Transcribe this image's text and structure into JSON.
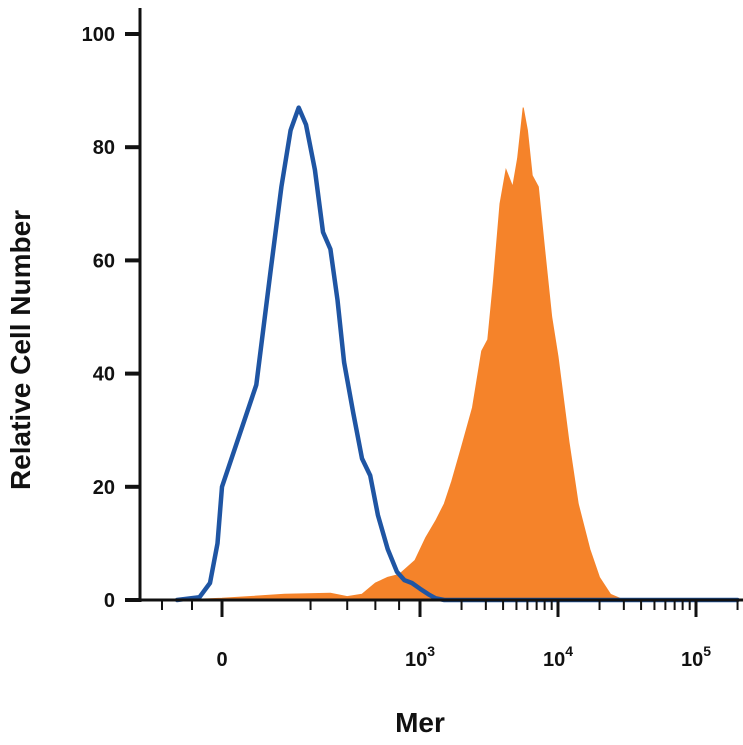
{
  "chart_data": {
    "type": "area",
    "xlabel": "Mer",
    "ylabel": "Relative Cell Number",
    "x_scale": "biexponential",
    "x_ticks": [
      {
        "value": 0,
        "base": "0",
        "exp": ""
      },
      {
        "value": 1000,
        "base": "10",
        "exp": "3"
      },
      {
        "value": 10000,
        "base": "10",
        "exp": "4"
      },
      {
        "value": 100000,
        "base": "10",
        "exp": "5"
      }
    ],
    "ylim": [
      0,
      100
    ],
    "y_ticks": [
      {
        "value": 0,
        "label": "0"
      },
      {
        "value": 20,
        "label": "20"
      },
      {
        "value": 40,
        "label": "40"
      },
      {
        "value": 60,
        "label": "60"
      },
      {
        "value": 80,
        "label": "80"
      },
      {
        "value": 100,
        "label": "100"
      }
    ],
    "grid": false,
    "legend": "none",
    "series": [
      {
        "style": "filled",
        "color": "#f5832a",
        "points": [
          [
            -300,
            0
          ],
          [
            0,
            0.3
          ],
          [
            100,
            1
          ],
          [
            300,
            1.2
          ],
          [
            400,
            0.6
          ],
          [
            500,
            1
          ],
          [
            600,
            3
          ],
          [
            700,
            4
          ],
          [
            800,
            4.5
          ],
          [
            950,
            7
          ],
          [
            1100,
            11
          ],
          [
            1300,
            14
          ],
          [
            1500,
            17
          ],
          [
            1700,
            21
          ],
          [
            2000,
            27
          ],
          [
            2400,
            34
          ],
          [
            2800,
            44
          ],
          [
            3100,
            46
          ],
          [
            3400,
            56
          ],
          [
            3800,
            70
          ],
          [
            4200,
            76
          ],
          [
            4700,
            73
          ],
          [
            5100,
            78
          ],
          [
            5600,
            87
          ],
          [
            6000,
            83
          ],
          [
            6500,
            75
          ],
          [
            7200,
            73
          ],
          [
            8000,
            62
          ],
          [
            9000,
            50
          ],
          [
            10000,
            43
          ],
          [
            12000,
            28
          ],
          [
            14000,
            17
          ],
          [
            17000,
            9
          ],
          [
            20000,
            4
          ],
          [
            24000,
            1
          ],
          [
            30000,
            0
          ]
        ]
      },
      {
        "style": "line",
        "color": "#1f55a3",
        "points": [
          [
            -300,
            0
          ],
          [
            -150,
            0.5
          ],
          [
            -80,
            3
          ],
          [
            -30,
            10
          ],
          [
            0,
            20
          ],
          [
            30,
            38
          ],
          [
            60,
            58
          ],
          [
            90,
            73
          ],
          [
            120,
            83
          ],
          [
            150,
            87
          ],
          [
            180,
            84
          ],
          [
            220,
            76
          ],
          [
            260,
            65
          ],
          [
            300,
            62
          ],
          [
            340,
            53
          ],
          [
            380,
            42
          ],
          [
            440,
            33
          ],
          [
            500,
            25
          ],
          [
            560,
            22
          ],
          [
            620,
            15
          ],
          [
            700,
            9
          ],
          [
            780,
            5
          ],
          [
            850,
            3.5
          ],
          [
            920,
            3
          ],
          [
            1000,
            2
          ],
          [
            1150,
            1
          ],
          [
            1300,
            0.3
          ],
          [
            1500,
            0
          ],
          [
            200000,
            0
          ]
        ]
      }
    ]
  }
}
